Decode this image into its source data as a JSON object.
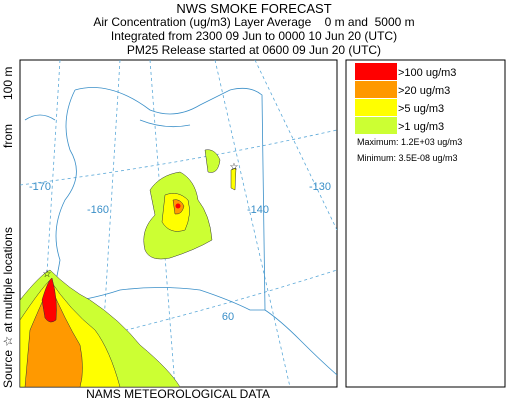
{
  "header": {
    "title": "NWS SMOKE FORECAST",
    "lines": [
      "Air Concentration (ug/m3) Layer Average    0 m and  5000 m",
      "Integrated from 2300 09 Jun to 0000 10 Jun 20 (UTC)",
      "PM25 Release started at 0600 09 Jun 20 (UTC)"
    ]
  },
  "legend": {
    "items": [
      {
        "label": ">100 ug/m3",
        "color": "#ff0000"
      },
      {
        "label": ">20 ug/m3",
        "color": "#ff9900"
      },
      {
        "label": ">5 ug/m3",
        "color": "#ffff00"
      },
      {
        "label": ">1 ug/m3",
        "color": "#ccff33"
      }
    ],
    "maximum": "Maximum: 1.2E+03 ug/m3",
    "minimum": "Minimum: 3.5E-08 ug/m3"
  },
  "map": {
    "grid_labels": [
      "-170",
      "-160",
      "-140",
      "-130",
      "60"
    ]
  },
  "side_text": [
    "Source ☆ at multiple locations",
    "from",
    "100 m"
  ],
  "footer": "NAMS METEOROLOGICAL DATA"
}
